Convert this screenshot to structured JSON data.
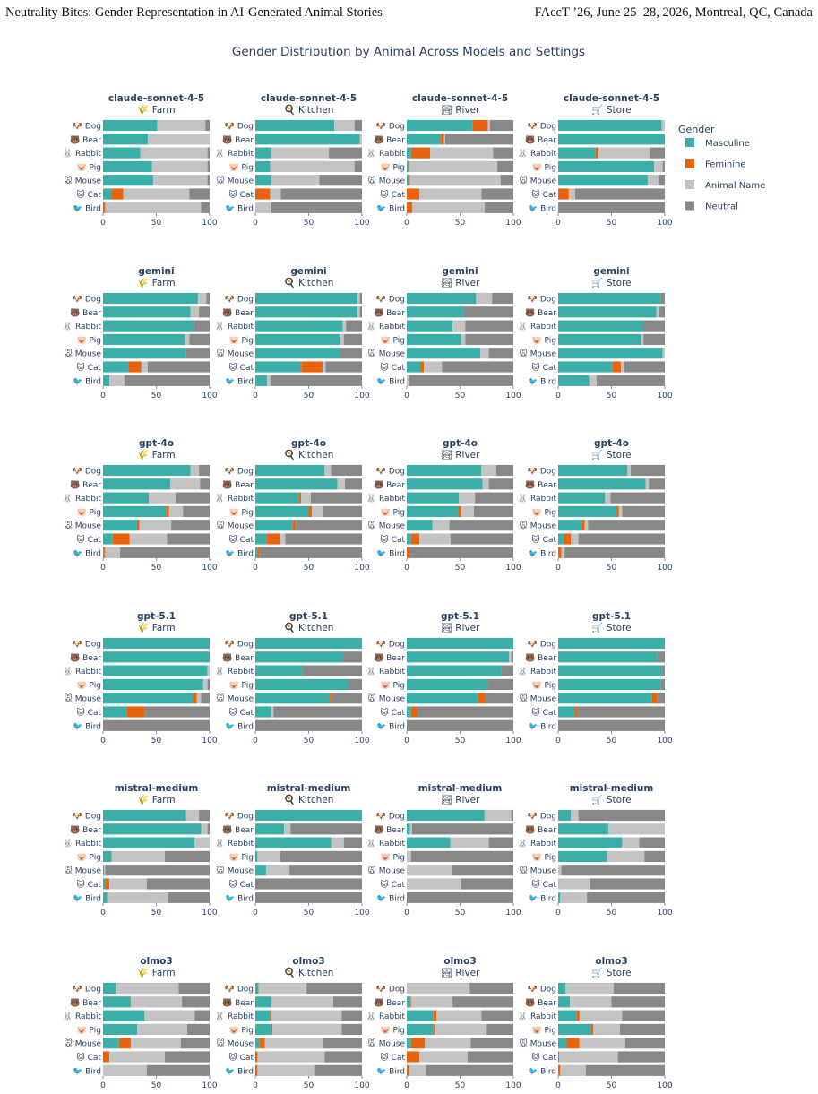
{
  "header": {
    "left": "Neutrality Bites: Gender Representation in AI-Generated Animal Stories",
    "right": "FAccT ’26, June 25–28, 2026, Montreal, QC, Canada"
  },
  "chart_data": {
    "type": "bar",
    "orientation": "horizontal",
    "stacked": true,
    "title": "Gender Distribution by Animal Across Models and Settings",
    "xlim": [
      0,
      100
    ],
    "xticks": [
      0,
      50,
      100
    ],
    "legend": {
      "title": "Gender",
      "placement": "right",
      "entries": [
        {
          "name": "Masculine",
          "color": "#3AAFA9"
        },
        {
          "name": "Feminine",
          "color": "#E8630A"
        },
        {
          "name": "Animal Name",
          "color": "#C3C3C3"
        },
        {
          "name": "Neutral",
          "color": "#888888"
        }
      ]
    },
    "animals": [
      {
        "name": "Dog",
        "emoji": "🐶"
      },
      {
        "name": "Bear",
        "emoji": "🐻"
      },
      {
        "name": "Rabbit",
        "emoji": "🐰"
      },
      {
        "name": "Pig",
        "emoji": "🐷"
      },
      {
        "name": "Mouse",
        "emoji": "🐭"
      },
      {
        "name": "Cat",
        "emoji": "🐱"
      },
      {
        "name": "Bird",
        "emoji": "🐦"
      }
    ],
    "settings": [
      {
        "name": "Farm",
        "icon": "🌾"
      },
      {
        "name": "Kitchen",
        "icon": "🍳"
      },
      {
        "name": "River",
        "icon": "🏞"
      },
      {
        "name": "Store",
        "icon": "🛒"
      }
    ],
    "panels": [
      {
        "model": "claude-sonnet-4-5",
        "setting": "Farm",
        "values": [
          [
            51,
            0,
            45,
            4
          ],
          [
            42,
            0,
            58,
            0
          ],
          [
            35,
            0,
            63,
            2
          ],
          [
            46,
            0,
            52,
            2
          ],
          [
            47,
            0,
            51,
            2
          ],
          [
            8,
            11,
            62,
            19
          ],
          [
            0,
            2,
            90,
            8
          ]
        ]
      },
      {
        "model": "claude-sonnet-4-5",
        "setting": "Kitchen",
        "values": [
          [
            74,
            0,
            19,
            7
          ],
          [
            98,
            0,
            2,
            0
          ],
          [
            15,
            0,
            54,
            31
          ],
          [
            14,
            0,
            79,
            7
          ],
          [
            15,
            0,
            45,
            40
          ],
          [
            0,
            14,
            10,
            76
          ],
          [
            0,
            0,
            15,
            85
          ]
        ]
      },
      {
        "model": "claude-sonnet-4-5",
        "setting": "River",
        "values": [
          [
            62,
            14,
            2,
            22
          ],
          [
            32,
            3,
            1,
            64
          ],
          [
            4,
            18,
            59,
            19
          ],
          [
            1,
            1,
            83,
            15
          ],
          [
            2,
            1,
            85,
            12
          ],
          [
            0,
            12,
            58,
            30
          ],
          [
            0,
            5,
            68,
            27
          ]
        ]
      },
      {
        "model": "claude-sonnet-4-5",
        "setting": "Store",
        "values": [
          [
            97,
            0,
            3,
            0
          ],
          [
            100,
            0,
            0,
            0
          ],
          [
            35,
            3,
            48,
            14
          ],
          [
            90,
            0,
            8,
            2
          ],
          [
            84,
            0,
            10,
            6
          ],
          [
            0,
            10,
            6,
            84
          ],
          [
            0,
            0,
            0,
            100
          ]
        ]
      },
      {
        "model": "gemini",
        "setting": "Farm",
        "values": [
          [
            89,
            0,
            8,
            3
          ],
          [
            82,
            0,
            8,
            10
          ],
          [
            85,
            0,
            0,
            15
          ],
          [
            77,
            0,
            4,
            19
          ],
          [
            78,
            0,
            0,
            22
          ],
          [
            24,
            12,
            6,
            58
          ],
          [
            6,
            0,
            14,
            80
          ]
        ]
      },
      {
        "model": "gemini",
        "setting": "Kitchen",
        "values": [
          [
            96,
            0,
            2,
            2
          ],
          [
            96,
            0,
            2,
            2
          ],
          [
            82,
            0,
            3,
            15
          ],
          [
            79,
            0,
            4,
            17
          ],
          [
            79,
            0,
            0,
            21
          ],
          [
            43,
            20,
            3,
            34
          ],
          [
            11,
            0,
            3,
            86
          ]
        ]
      },
      {
        "model": "gemini",
        "setting": "River",
        "values": [
          [
            65,
            0,
            15,
            20
          ],
          [
            53,
            0,
            0,
            47
          ],
          [
            43,
            0,
            12,
            45
          ],
          [
            51,
            0,
            4,
            45
          ],
          [
            69,
            0,
            8,
            23
          ],
          [
            13,
            3,
            17,
            67
          ],
          [
            0,
            0,
            2,
            98
          ]
        ]
      },
      {
        "model": "gemini",
        "setting": "Store",
        "values": [
          [
            96,
            0,
            0,
            4
          ],
          [
            92,
            0,
            3,
            5
          ],
          [
            79,
            0,
            0,
            21
          ],
          [
            78,
            0,
            2,
            20
          ],
          [
            98,
            0,
            2,
            0
          ],
          [
            51,
            8,
            3,
            38
          ],
          [
            29,
            0,
            7,
            64
          ]
        ]
      },
      {
        "model": "gpt-4o",
        "setting": "Farm",
        "values": [
          [
            82,
            0,
            8,
            10
          ],
          [
            63,
            0,
            28,
            9
          ],
          [
            43,
            0,
            25,
            32
          ],
          [
            59,
            3,
            13,
            25
          ],
          [
            32,
            2,
            30,
            36
          ],
          [
            9,
            16,
            35,
            40
          ],
          [
            1,
            1,
            14,
            84
          ]
        ]
      },
      {
        "model": "gpt-4o",
        "setting": "Kitchen",
        "values": [
          [
            65,
            0,
            6,
            29
          ],
          [
            77,
            0,
            7,
            16
          ],
          [
            41,
            2,
            9,
            48
          ],
          [
            50,
            3,
            10,
            37
          ],
          [
            35,
            3,
            0,
            62
          ],
          [
            11,
            12,
            5,
            72
          ],
          [
            2,
            2,
            0,
            96
          ]
        ]
      },
      {
        "model": "gpt-4o",
        "setting": "River",
        "values": [
          [
            70,
            0,
            14,
            16
          ],
          [
            71,
            0,
            6,
            23
          ],
          [
            49,
            0,
            15,
            36
          ],
          [
            48,
            3,
            12,
            37
          ],
          [
            24,
            0,
            16,
            60
          ],
          [
            4,
            8,
            29,
            59
          ],
          [
            0,
            3,
            0,
            97
          ]
        ]
      },
      {
        "model": "gpt-4o",
        "setting": "Store",
        "values": [
          [
            65,
            0,
            3,
            32
          ],
          [
            82,
            0,
            3,
            15
          ],
          [
            44,
            0,
            5,
            51
          ],
          [
            55,
            2,
            3,
            40
          ],
          [
            22,
            3,
            3,
            72
          ],
          [
            5,
            7,
            7,
            81
          ],
          [
            0,
            3,
            3,
            94
          ]
        ]
      },
      {
        "model": "gpt-5.1",
        "setting": "Farm",
        "values": [
          [
            100,
            0,
            0,
            0
          ],
          [
            100,
            0,
            0,
            0
          ],
          [
            98,
            0,
            2,
            0
          ],
          [
            94,
            0,
            4,
            2
          ],
          [
            84,
            4,
            4,
            8
          ],
          [
            22,
            17,
            0,
            61
          ],
          [
            0,
            0,
            0,
            100
          ]
        ]
      },
      {
        "model": "gpt-5.1",
        "setting": "Kitchen",
        "values": [
          [
            100,
            0,
            0,
            0
          ],
          [
            82,
            0,
            0,
            18
          ],
          [
            44,
            0,
            0,
            56
          ],
          [
            87,
            0,
            0,
            13
          ],
          [
            70,
            2,
            0,
            28
          ],
          [
            15,
            0,
            2,
            83
          ],
          [
            0,
            0,
            0,
            100
          ]
        ]
      },
      {
        "model": "gpt-5.1",
        "setting": "River",
        "values": [
          [
            100,
            0,
            0,
            0
          ],
          [
            96,
            0,
            2,
            2
          ],
          [
            89,
            0,
            0,
            11
          ],
          [
            76,
            0,
            0,
            24
          ],
          [
            67,
            7,
            0,
            26
          ],
          [
            4,
            6,
            0,
            90
          ],
          [
            0,
            0,
            0,
            100
          ]
        ]
      },
      {
        "model": "gpt-5.1",
        "setting": "Store",
        "values": [
          [
            100,
            0,
            0,
            0
          ],
          [
            93,
            0,
            0,
            7
          ],
          [
            97,
            0,
            0,
            3
          ],
          [
            96,
            0,
            0,
            4
          ],
          [
            88,
            5,
            0,
            7
          ],
          [
            16,
            2,
            0,
            82
          ],
          [
            0,
            0,
            0,
            100
          ]
        ]
      },
      {
        "model": "mistral-medium",
        "setting": "Farm",
        "values": [
          [
            78,
            0,
            12,
            10
          ],
          [
            92,
            0,
            6,
            2
          ],
          [
            86,
            0,
            14,
            0
          ],
          [
            8,
            0,
            50,
            42
          ],
          [
            1,
            0,
            1,
            98
          ],
          [
            2,
            4,
            35,
            59
          ],
          [
            4,
            0,
            57,
            39
          ]
        ]
      },
      {
        "model": "mistral-medium",
        "setting": "Kitchen",
        "values": [
          [
            100,
            0,
            0,
            0
          ],
          [
            27,
            0,
            6,
            67
          ],
          [
            71,
            0,
            12,
            17
          ],
          [
            2,
            0,
            21,
            77
          ],
          [
            10,
            0,
            22,
            68
          ],
          [
            0,
            0,
            0,
            100
          ],
          [
            0,
            0,
            0,
            100
          ]
        ]
      },
      {
        "model": "mistral-medium",
        "setting": "River",
        "values": [
          [
            73,
            0,
            25,
            2
          ],
          [
            3,
            0,
            2,
            95
          ],
          [
            41,
            0,
            36,
            23
          ],
          [
            0,
            0,
            4,
            96
          ],
          [
            0,
            0,
            42,
            58
          ],
          [
            0,
            0,
            51,
            49
          ],
          [
            0,
            0,
            0,
            100
          ]
        ]
      },
      {
        "model": "mistral-medium",
        "setting": "Store",
        "values": [
          [
            12,
            0,
            7,
            81
          ],
          [
            47,
            0,
            53,
            0
          ],
          [
            60,
            0,
            16,
            24
          ],
          [
            46,
            0,
            35,
            19
          ],
          [
            0,
            0,
            3,
            97
          ],
          [
            0,
            0,
            30,
            70
          ],
          [
            2,
            0,
            25,
            73
          ]
        ]
      },
      {
        "model": "olmo3",
        "setting": "Farm",
        "values": [
          [
            12,
            0,
            59,
            29
          ],
          [
            26,
            0,
            48,
            26
          ],
          [
            39,
            0,
            47,
            14
          ],
          [
            32,
            0,
            47,
            21
          ],
          [
            15,
            11,
            47,
            27
          ],
          [
            0,
            6,
            52,
            42
          ],
          [
            0,
            0,
            41,
            59
          ]
        ]
      },
      {
        "model": "olmo3",
        "setting": "Kitchen",
        "values": [
          [
            3,
            0,
            45,
            52
          ],
          [
            15,
            0,
            58,
            27
          ],
          [
            14,
            1,
            66,
            19
          ],
          [
            15,
            1,
            65,
            19
          ],
          [
            4,
            5,
            54,
            37
          ],
          [
            0,
            2,
            63,
            35
          ],
          [
            0,
            2,
            54,
            44
          ]
        ]
      },
      {
        "model": "olmo3",
        "setting": "River",
        "values": [
          [
            0,
            0,
            59,
            41
          ],
          [
            3,
            1,
            39,
            57
          ],
          [
            25,
            3,
            42,
            30
          ],
          [
            25,
            1,
            49,
            25
          ],
          [
            4,
            13,
            43,
            40
          ],
          [
            0,
            12,
            45,
            43
          ],
          [
            0,
            2,
            16,
            82
          ]
        ]
      },
      {
        "model": "olmo3",
        "setting": "Store",
        "values": [
          [
            7,
            0,
            45,
            48
          ],
          [
            11,
            0,
            39,
            50
          ],
          [
            17,
            3,
            40,
            40
          ],
          [
            31,
            2,
            25,
            42
          ],
          [
            8,
            12,
            43,
            37
          ],
          [
            0,
            1,
            55,
            44
          ],
          [
            0,
            2,
            24,
            74
          ]
        ]
      }
    ]
  }
}
